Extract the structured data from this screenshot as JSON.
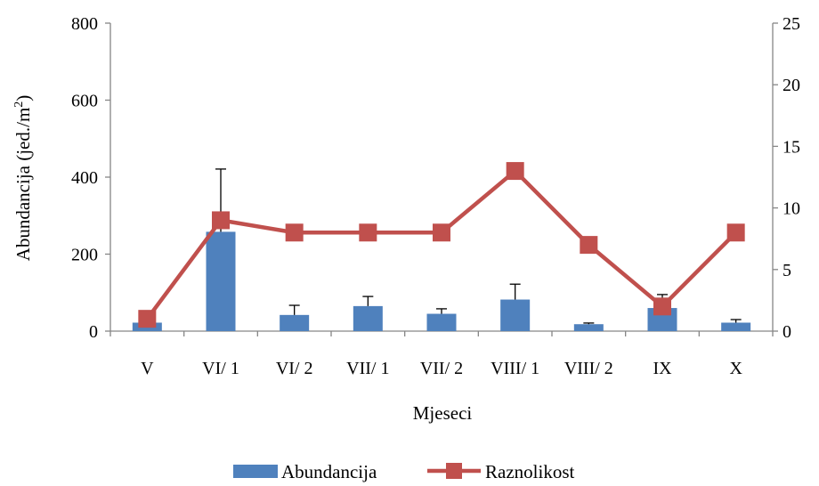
{
  "chart_data": {
    "type": "bar",
    "categories": [
      "V",
      "VI/ 1",
      "VI/ 2",
      "VII/ 1",
      "VII/ 2",
      "VIII/ 1",
      "VIII/ 2",
      "IX",
      "X"
    ],
    "series": [
      {
        "name": "Abundancija",
        "type": "bar",
        "axis": "left",
        "color": "#4F81BD",
        "values": [
          22,
          258,
          42,
          65,
          45,
          82,
          18,
          60,
          22
        ],
        "error_plus": [
          0,
          163,
          25,
          25,
          13,
          40,
          3,
          35,
          8
        ]
      },
      {
        "name": "Raznolikost",
        "type": "line",
        "axis": "right",
        "color": "#C0504D",
        "marker": "square",
        "values": [
          1,
          9,
          8,
          8,
          8,
          13,
          7,
          2,
          8
        ]
      }
    ],
    "xlabel": "Mjeseci",
    "ylabel": "Abundancija (jed./m",
    "ylabel_sup": "2",
    "ylabel_end": ")",
    "ylim": [
      0,
      800
    ],
    "yticks": [
      0,
      200,
      400,
      600,
      800
    ],
    "y2lim": [
      0,
      25
    ],
    "y2ticks": [
      0,
      5,
      10,
      15,
      20,
      25
    ],
    "grid": false,
    "legend_position": "bottom"
  }
}
